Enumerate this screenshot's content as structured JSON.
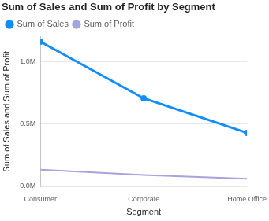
{
  "chart_data": {
    "type": "line",
    "title": "Sum of Sales and Sum of Profit by Segment",
    "x_label": "Segment",
    "y_label": "Sum of Sales and Sum of Profit",
    "categories": [
      "Consumer",
      "Corporate",
      "Home Office"
    ],
    "series": [
      {
        "name": "Sum of Sales",
        "color": "#118DFF",
        "marker": "circle",
        "values": [
          1160000,
          706000,
          429000
        ]
      },
      {
        "name": "Sum of Profit",
        "color": "#A5A4DC",
        "marker": "none",
        "values": [
          134000,
          92000,
          61000
        ]
      }
    ],
    "ylim": [
      0,
      1200000
    ],
    "yticks": [
      {
        "value": 0,
        "label": "0.0M"
      },
      {
        "value": 500000,
        "label": "0.5M"
      },
      {
        "value": 1000000,
        "label": "1.0M"
      }
    ],
    "grid": true,
    "legend": "top-left"
  }
}
